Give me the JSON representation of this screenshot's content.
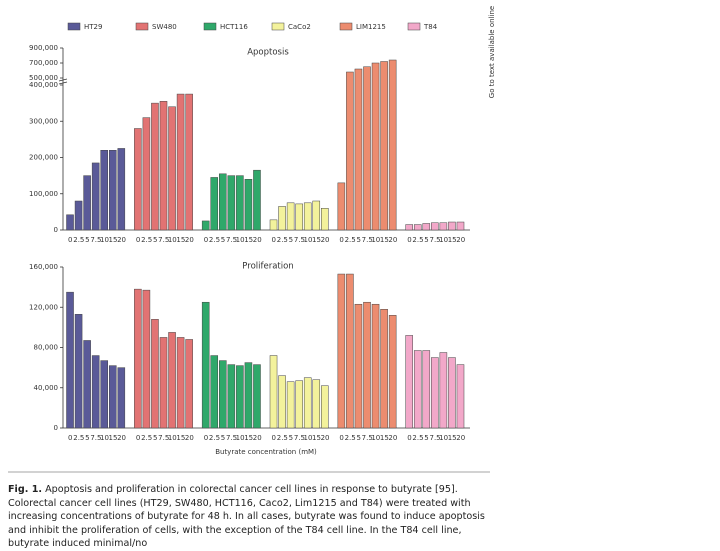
{
  "chart_data": [
    {
      "type": "bar",
      "title": "Apoptosis",
      "categories": [
        "0",
        "2.5",
        "5",
        "7.5",
        "10",
        "15",
        "20"
      ],
      "series": [
        {
          "name": "HT29",
          "color": "#5a5a98",
          "values": [
            42000,
            80000,
            150000,
            185000,
            220000,
            220000,
            225000
          ]
        },
        {
          "name": "SW480",
          "color": "#e27373",
          "values": [
            280000,
            310000,
            350000,
            355000,
            340000,
            375000,
            375000
          ]
        },
        {
          "name": "HCT116",
          "color": "#2fa86a",
          "values": [
            25000,
            145000,
            155000,
            150000,
            150000,
            140000,
            165000
          ]
        },
        {
          "name": "CaCo2",
          "color": "#f3f29c",
          "values": [
            28000,
            65000,
            75000,
            72000,
            75000,
            80000,
            60000
          ]
        },
        {
          "name": "LIM1215",
          "color": "#ec8c6f",
          "values": [
            130000,
            580000,
            620000,
            650000,
            700000,
            720000,
            740000
          ]
        },
        {
          "name": "T84",
          "color": "#f2a8c9",
          "values": [
            15000,
            15000,
            18000,
            20000,
            20000,
            22000,
            22000
          ]
        }
      ],
      "ylim": [
        0,
        900000
      ],
      "ybreak": [
        400000,
        500000
      ],
      "yticks": [
        0,
        {
          "value": 100000,
          "label": "100,000"
        },
        {
          "value": 200000,
          "label": "200,000"
        },
        {
          "value": 300000,
          "label": "300,000"
        },
        {
          "value": 400000,
          "label": "400,000"
        },
        {
          "value": 500000,
          "label": "500,000"
        },
        {
          "value": 700000,
          "label": "700,000"
        },
        {
          "value": 900000,
          "label": "900,000"
        }
      ]
    },
    {
      "type": "bar",
      "title": "Proliferation",
      "xlabel": "Butyrate concentration (mM)",
      "categories": [
        "0",
        "2.5",
        "5",
        "7.5",
        "10",
        "15",
        "20"
      ],
      "series": [
        {
          "color": "#5a5a98",
          "values": [
            135000,
            113000,
            87000,
            72000,
            67000,
            62000,
            60000
          ]
        },
        {
          "color": "#e27373",
          "values": [
            138000,
            137000,
            108000,
            90000,
            95000,
            90000,
            88000
          ]
        },
        {
          "color": "#2fa86a",
          "values": [
            125000,
            72000,
            67000,
            63000,
            62000,
            65000,
            63000
          ]
        },
        {
          "color": "#f3f29c",
          "values": [
            72000,
            52000,
            46000,
            47000,
            50000,
            48000,
            42000
          ]
        },
        {
          "color": "#ec8c6f",
          "values": [
            153000,
            153000,
            123000,
            125000,
            123000,
            118000,
            112000
          ]
        },
        {
          "color": "#f2a8c9",
          "values": [
            92000,
            77000,
            77000,
            70000,
            75000,
            70000,
            63000
          ]
        }
      ],
      "ylim": [
        0,
        160000
      ],
      "yticks": [
        0,
        {
          "value": 40000,
          "label": "40,000"
        },
        {
          "value": 80000,
          "label": "80,000"
        },
        {
          "value": 120000,
          "label": "120,000"
        },
        {
          "value": 160000,
          "label": "160,000"
        }
      ]
    }
  ],
  "caption_label": "Fig. 1.",
  "caption": "Apoptosis and proliferation in colorectal cancer cell lines in response to butyrate [95]. Colorectal cancer cell lines (HT29, SW480, HCT116, Caco2, Lim1215 and T84) were treated with increasing concentrations of butyrate for 48 h. In all cases, butyrate was found to induce apoptosis and inhibit the proliferation of cells, with the exception of the T84 cell line. In the T84 cell line, butyrate induced minimal/no",
  "side_note": "Go to text available online"
}
